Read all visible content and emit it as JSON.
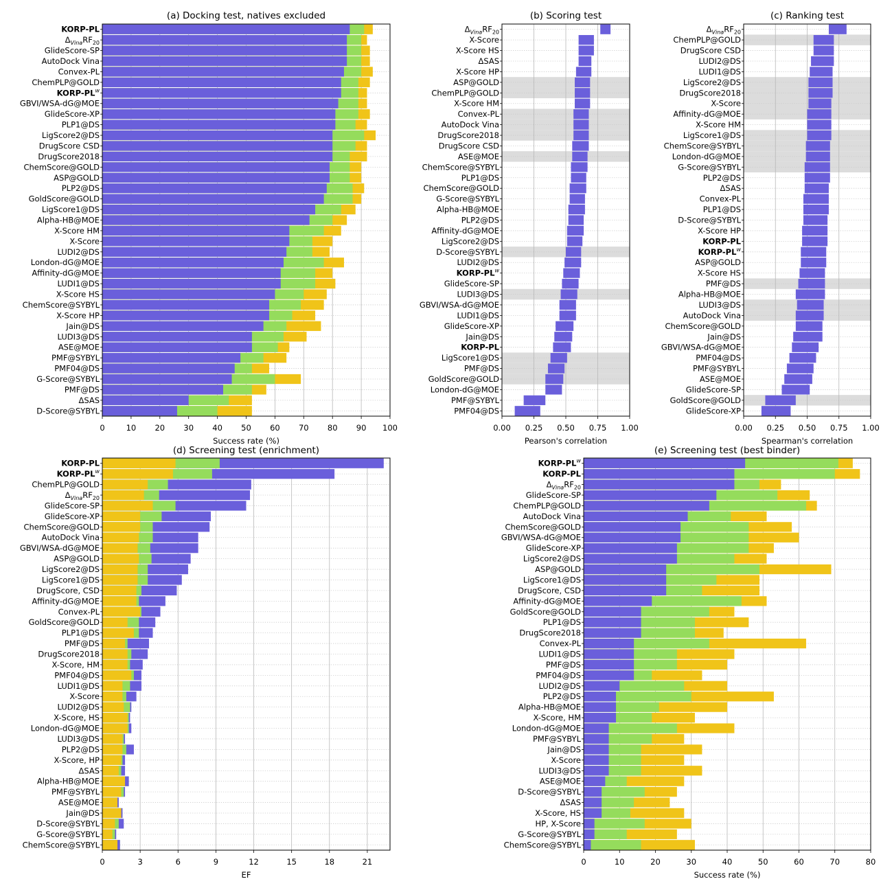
{
  "colors": {
    "blue": "#6a5fdb",
    "green": "#95dc5c",
    "yellow": "#f0c419",
    "band": "#dcdcdc",
    "grid": "#b8b8b8"
  },
  "chart_data": [
    {
      "id": "a",
      "type": "bar",
      "subtype": "stacked-horizontal",
      "title": "(a) Docking test, natives excluded",
      "xlabel": "Success rate (%)",
      "xlim": [
        0,
        100
      ],
      "xticks": [
        0,
        10,
        20,
        30,
        40,
        50,
        60,
        70,
        80,
        90,
        100
      ],
      "grid": "vertical",
      "categories": [
        "KORP-PL",
        "ΔVinaRF20",
        "GlideScore-SP",
        "AutoDock Vina",
        "Convex-PL",
        "ChemPLP@GOLD",
        "KORP-PLw",
        "GBVI/WSA-dG@MOE",
        "GlideScore-XP",
        "PLP1@DS",
        "LigScore2@DS",
        "DrugScore CSD",
        "DrugScore2018",
        "ChemScore@GOLD",
        "ASP@GOLD",
        "PLP2@DS",
        "GoldScore@GOLD",
        "LigScore1@DS",
        "Alpha-HB@MOE",
        "X-Score HM",
        "X-Score",
        "LUDI2@DS",
        "London-dG@MOE",
        "Affinity-dG@MOE",
        "LUDI1@DS",
        "X-Score HS",
        "ChemScore@SYBYL",
        "X-Score HP",
        "Jain@DS",
        "LUDI3@DS",
        "ASE@MOE",
        "PMF@SYBYL",
        "PMF04@DS",
        "G-Score@SYBYL",
        "PMF@DS",
        "ΔSAS",
        "D-Score@SYBYL"
      ],
      "bold": [
        "KORP-PL",
        "KORP-PLw"
      ],
      "series": [
        {
          "color": "blue",
          "values": [
            86,
            85,
            85,
            85,
            84,
            83,
            83,
            82,
            81,
            81,
            80,
            80,
            80,
            79,
            79,
            78,
            77,
            74,
            72,
            65,
            65,
            64,
            63,
            62,
            62,
            60,
            58,
            58,
            56,
            52,
            52,
            48,
            46,
            45,
            42,
            30,
            26
          ]
        },
        {
          "color": "green",
          "values": [
            91,
            90,
            90,
            90,
            90,
            89,
            89,
            89,
            89,
            88,
            91,
            88,
            86,
            86,
            86,
            87,
            87,
            83,
            80,
            77,
            73,
            73,
            77,
            74,
            74,
            70,
            69,
            66,
            64,
            63,
            61,
            56,
            52,
            60,
            52,
            44,
            40
          ]
        },
        {
          "color": "yellow",
          "values": [
            94,
            92,
            93,
            93,
            94,
            93,
            92,
            92,
            93,
            92,
            95,
            92,
            92,
            90,
            90,
            91,
            90,
            88,
            85,
            83,
            80,
            79,
            84,
            80,
            81,
            78,
            77,
            74,
            76,
            71,
            65,
            64,
            58,
            69,
            57,
            52,
            52
          ]
        }
      ]
    },
    {
      "id": "b",
      "type": "bar",
      "subtype": "range-bars",
      "title": "(b) Scoring test",
      "xlabel": "Pearson's correlation",
      "xlim": [
        0,
        1
      ],
      "xticks": [
        "0.00",
        "0.25",
        "0.50",
        "0.75",
        "1.00"
      ],
      "grid": "vertical",
      "categories": [
        "ΔVinaRF20",
        "X-Score",
        "X-Score HS",
        "ΔSAS",
        "X-Score HP",
        "ASP@GOLD",
        "ChemPLP@GOLD",
        "X-Score HM",
        "Convex-PL",
        "AutoDock Vina",
        "DrugScore2018",
        "DrugScore CSD",
        "ASE@MOE",
        "ChemScore@SYBYL",
        "PLP1@DS",
        "ChemScore@GOLD",
        "G-Score@SYBYL",
        "Alpha-HB@MOE",
        "PLP2@DS",
        "Affinity-dG@MOE",
        "LigScore2@DS",
        "D-Score@SYBYL",
        "LUDI2@DS",
        "KORP-PLw",
        "GlideScore-SP",
        "LUDI3@DS",
        "GBVI/WSA-dG@MOE",
        "LUDI1@DS",
        "GlideScore-XP",
        "Jain@DS",
        "KORP-PL",
        "LigScore1@DS",
        "PMF@DS",
        "GoldScore@GOLD",
        "London-dG@MOE",
        "PMF@SYBYL",
        "PMF04@DS"
      ],
      "bold": [
        "KORP-PL",
        "KORP-PLw"
      ],
      "shaded": [
        "ASP@GOLD",
        "ChemPLP@GOLD",
        "Convex-PL",
        "AutoDock Vina",
        "DrugScore2018",
        "ASE@MOE",
        "D-Score@SYBYL",
        "LUDI3@DS",
        "LigScore1@DS",
        "PMF@DS",
        "GoldScore@GOLD"
      ],
      "ranges": [
        [
          0.77,
          0.85
        ],
        [
          0.6,
          0.72
        ],
        [
          0.6,
          0.72
        ],
        [
          0.6,
          0.7
        ],
        [
          0.58,
          0.7
        ],
        [
          0.57,
          0.69
        ],
        [
          0.57,
          0.69
        ],
        [
          0.57,
          0.69
        ],
        [
          0.56,
          0.68
        ],
        [
          0.56,
          0.68
        ],
        [
          0.56,
          0.68
        ],
        [
          0.55,
          0.68
        ],
        [
          0.55,
          0.67
        ],
        [
          0.54,
          0.67
        ],
        [
          0.54,
          0.66
        ],
        [
          0.53,
          0.66
        ],
        [
          0.53,
          0.65
        ],
        [
          0.52,
          0.65
        ],
        [
          0.52,
          0.64
        ],
        [
          0.51,
          0.64
        ],
        [
          0.51,
          0.63
        ],
        [
          0.5,
          0.62
        ],
        [
          0.49,
          0.62
        ],
        [
          0.48,
          0.61
        ],
        [
          0.47,
          0.6
        ],
        [
          0.46,
          0.59
        ],
        [
          0.45,
          0.58
        ],
        [
          0.45,
          0.58
        ],
        [
          0.42,
          0.56
        ],
        [
          0.41,
          0.55
        ],
        [
          0.4,
          0.54
        ],
        [
          0.38,
          0.51
        ],
        [
          0.36,
          0.49
        ],
        [
          0.34,
          0.48
        ],
        [
          0.34,
          0.47
        ],
        [
          0.17,
          0.34
        ],
        [
          0.1,
          0.3
        ]
      ]
    },
    {
      "id": "c",
      "type": "bar",
      "subtype": "range-bars",
      "title": "(c) Ranking test",
      "xlabel": "Spearman's correlation",
      "xlim": [
        0,
        1
      ],
      "xticks": [
        "0.00",
        "0.25",
        "0.50",
        "0.75",
        "1.00"
      ],
      "grid": "vertical",
      "categories": [
        "ΔVinaRF20",
        "ChemPLP@GOLD",
        "DrugScore CSD",
        "LUDI2@DS",
        "LUDI1@DS",
        "LigScore2@DS",
        "DrugScore2018",
        "X-Score",
        "Affinity-dG@MOE",
        "X-Score HM",
        "LigScore1@DS",
        "ChemScore@SYBYL",
        "London-dG@MOE",
        "G-Score@SYBYL",
        "PLP2@DS",
        "ΔSAS",
        "Convex-PL",
        "PLP1@DS",
        "D-Score@SYBYL",
        "X-Score HP",
        "KORP-PL",
        "KORP-PLw",
        "ASP@GOLD",
        "X-Score HS",
        "PMF@DS",
        "Alpha-HB@MOE",
        "LUDI3@DS",
        "AutoDock Vina",
        "ChemScore@GOLD",
        "Jain@DS",
        "GBVI/WSA-dG@MOE",
        "PMF04@DS",
        "PMF@SYBYL",
        "ASE@MOE",
        "GlideScore-SP",
        "GoldScore@GOLD",
        "GlideScore-XP"
      ],
      "bold": [
        "KORP-PL",
        "KORP-PLw"
      ],
      "shaded": [
        "ChemPLP@GOLD",
        "LigScore2@DS",
        "DrugScore2018",
        "X-Score",
        "Affinity-dG@MOE",
        "LigScore1@DS",
        "ChemScore@SYBYL",
        "London-dG@MOE",
        "G-Score@SYBYL",
        "PMF@DS",
        "LUDI3@DS",
        "AutoDock Vina",
        "GoldScore@GOLD"
      ],
      "ranges": [
        [
          0.67,
          0.81
        ],
        [
          0.55,
          0.71
        ],
        [
          0.55,
          0.71
        ],
        [
          0.53,
          0.71
        ],
        [
          0.52,
          0.7
        ],
        [
          0.51,
          0.7
        ],
        [
          0.51,
          0.7
        ],
        [
          0.51,
          0.69
        ],
        [
          0.5,
          0.69
        ],
        [
          0.5,
          0.69
        ],
        [
          0.5,
          0.69
        ],
        [
          0.49,
          0.68
        ],
        [
          0.49,
          0.68
        ],
        [
          0.48,
          0.68
        ],
        [
          0.48,
          0.68
        ],
        [
          0.48,
          0.67
        ],
        [
          0.47,
          0.67
        ],
        [
          0.47,
          0.67
        ],
        [
          0.47,
          0.66
        ],
        [
          0.46,
          0.66
        ],
        [
          0.46,
          0.66
        ],
        [
          0.45,
          0.65
        ],
        [
          0.45,
          0.65
        ],
        [
          0.44,
          0.64
        ],
        [
          0.43,
          0.64
        ],
        [
          0.41,
          0.64
        ],
        [
          0.42,
          0.63
        ],
        [
          0.41,
          0.63
        ],
        [
          0.41,
          0.62
        ],
        [
          0.39,
          0.62
        ],
        [
          0.38,
          0.59
        ],
        [
          0.36,
          0.57
        ],
        [
          0.34,
          0.55
        ],
        [
          0.32,
          0.54
        ],
        [
          0.3,
          0.52
        ],
        [
          0.17,
          0.41
        ],
        [
          0.14,
          0.37
        ]
      ]
    },
    {
      "id": "d",
      "type": "bar",
      "subtype": "stacked-horizontal",
      "title": "(d) Screening test (enrichment)",
      "xlabel": "EF",
      "xlim": [
        0,
        22.8
      ],
      "xticks": [
        0,
        3,
        6,
        9,
        12,
        15,
        18,
        21
      ],
      "grid": "vertical",
      "categories": [
        "KORP-PL",
        "KORP-PLw",
        "ChemPLP@GOLD",
        "ΔVinaRF20",
        "GlideScore-SP",
        "GlideScore-XP",
        "ChemScore@GOLD",
        "AutoDock Vina",
        "GBVI/WSA-dG@MOE",
        "ASP@GOLD",
        "LigScore2@DS",
        "LigScore1@DS",
        "DrugScore, CSD",
        "Affinity-dG@MOE",
        "Convex-PL",
        "GoldScore@GOLD",
        "PLP1@DS",
        "PMF@DS",
        "DrugScore2018",
        "X-Score, HM",
        "PMF04@DS",
        "LUDI1@DS",
        "X-Score",
        "LUDI2@DS",
        "X-Score, HS",
        "London-dG@MOE",
        "LUDI3@DS",
        "PLP2@DS",
        "X-Score, HP",
        "ΔSAS",
        "Alpha-HB@MOE",
        "PMF@SYBYL",
        "ASE@MOE",
        "Jain@DS",
        "D-Score@SYBYL",
        "G-Score@SYBYL",
        "ChemScore@SYBYL"
      ],
      "bold": [
        "KORP-PL",
        "KORP-PLw"
      ],
      "series": [
        {
          "color": "yellow",
          "values": [
            5.8,
            5.6,
            3.6,
            3.3,
            4.0,
            3.0,
            3.0,
            2.9,
            2.8,
            2.9,
            2.8,
            2.8,
            2.7,
            2.7,
            3.0,
            2.0,
            2.5,
            1.8,
            2.0,
            2.0,
            2.3,
            1.6,
            1.6,
            1.7,
            2.0,
            2.0,
            1.6,
            1.6,
            1.5,
            1.3,
            1.8,
            1.5,
            1.2,
            1.5,
            1.0,
            0.8,
            1.2
          ]
        },
        {
          "color": "green",
          "values": [
            9.3,
            8.7,
            5.2,
            4.5,
            5.8,
            4.7,
            4.0,
            4.0,
            3.8,
            3.9,
            3.6,
            3.6,
            3.1,
            2.9,
            3.1,
            2.9,
            2.9,
            2.0,
            2.3,
            2.2,
            2.5,
            2.2,
            1.9,
            2.2,
            2.1,
            2.1,
            1.7,
            1.9,
            1.6,
            1.5,
            2.1,
            1.7,
            1.3,
            1.6,
            1.3,
            1.0,
            1.4
          ]
        },
        {
          "color": "blue",
          "values": [
            22.3,
            18.4,
            11.8,
            11.7,
            11.4,
            8.6,
            8.5,
            7.6,
            7.6,
            7.0,
            6.8,
            6.3,
            5.9,
            5.0,
            4.6,
            4.2,
            4.0,
            3.7,
            3.6,
            3.2,
            3.1,
            3.1,
            2.7,
            2.3,
            2.2,
            2.3,
            1.8,
            2.5,
            1.8,
            1.8,
            2.1,
            1.8,
            1.3,
            1.6,
            1.7,
            1.1,
            1.4
          ]
        }
      ]
    },
    {
      "id": "e",
      "type": "bar",
      "subtype": "stacked-horizontal",
      "title": "(e) Screening test (best binder)",
      "xlabel": "Success rate (%)",
      "xlim": [
        0,
        80
      ],
      "xticks": [
        0,
        10,
        20,
        30,
        40,
        50,
        60,
        70,
        80
      ],
      "grid": "vertical",
      "categories": [
        "KORP-PLw",
        "KORP-PL",
        "ΔVinaRF20",
        "GlideScore-SP",
        "ChemPLP@GOLD",
        "AutoDock Vina",
        "ChemScore@GOLD",
        "GBVI/WSA-dG@MOE",
        "GlideScore-XP",
        "LigScore2@DS",
        "ASP@GOLD",
        "LigScore1@DS",
        "DrugScore, CSD",
        "Affinity-dG@MOE",
        "GoldScore@GOLD",
        "PLP1@DS",
        "DrugScore2018",
        "Convex-PL",
        "LUDI1@DS",
        "PMF@DS",
        "PMF04@DS",
        "LUDI2@DS",
        "PLP2@DS",
        "Alpha-HB@MOE",
        "X-Score, HM",
        "London-dG@MOE",
        "PMF@SYBYL",
        "Jain@DS",
        "X-Score",
        "LUDI3@DS",
        "ASE@MOE",
        "D-Score@SYBYL",
        "ΔSAS",
        "X-Score, HS",
        "HP, X-Score",
        "G-Score@SYBYL",
        "ChemScore@SYBYL"
      ],
      "bold": [
        "KORP-PL",
        "KORP-PLw"
      ],
      "series": [
        {
          "color": "blue",
          "values": [
            45,
            42,
            42,
            37,
            35,
            29,
            27,
            27,
            26,
            26,
            23,
            23,
            23,
            19,
            16,
            16,
            16,
            14,
            14,
            14,
            14,
            10,
            9,
            9,
            9,
            7,
            7,
            7,
            7,
            7,
            6,
            5,
            5,
            5,
            3,
            3,
            2
          ]
        },
        {
          "color": "green",
          "values": [
            71,
            70,
            49,
            54,
            62,
            41,
            46,
            46,
            46,
            42,
            49,
            37,
            33,
            44,
            35,
            31,
            31,
            35,
            26,
            26,
            19,
            28,
            30,
            21,
            19,
            26,
            19,
            16,
            16,
            16,
            12,
            17,
            14,
            13,
            17,
            12,
            16
          ]
        },
        {
          "color": "yellow",
          "values": [
            75,
            77,
            55,
            63,
            65,
            51,
            58,
            60,
            53,
            51,
            69,
            49,
            49,
            51,
            42,
            46,
            39,
            62,
            42,
            40,
            33,
            40,
            53,
            40,
            31,
            42,
            28,
            33,
            28,
            33,
            28,
            26,
            24,
            28,
            30,
            26,
            31
          ]
        }
      ]
    }
  ]
}
